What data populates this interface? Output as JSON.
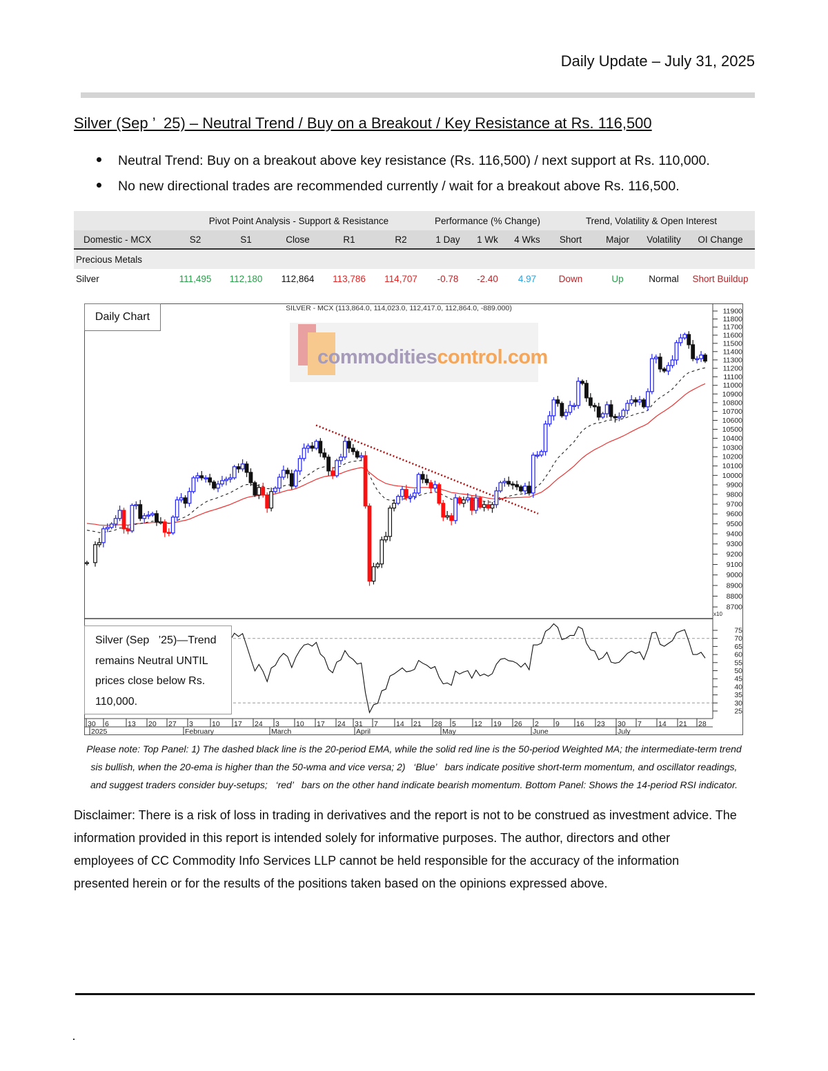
{
  "header": {
    "title": "Daily Update – July 31, 2025"
  },
  "report": {
    "title": "Silver (Sep ’  25) – Neutral Trend / Buy on a Breakout / Key Resistance at Rs. 116,500",
    "bullets": [
      {
        "bold": "Neutral Trend:",
        "text": " Buy on a breakout above key resistance (Rs. 116,500) / next support at Rs. 110,000."
      },
      {
        "bold": "",
        "text": "No new directional trades are recommended currently / wait for a breakout above Rs. 116,500."
      }
    ]
  },
  "table": {
    "groups": [
      "Pivot Point Analysis - Support & Resistance",
      "Performance (% Change)",
      "Trend, Volatility & Open Interest"
    ],
    "columns": [
      "Domestic - MCX",
      "S2",
      "S1",
      "Close",
      "R1",
      "R2",
      "1 Day",
      "1 Wk",
      "4 Wks",
      "Short",
      "Major",
      "Volatility",
      "OI Change"
    ],
    "section": "Precious Metals",
    "row": [
      "Silver",
      "111,495",
      "112,180",
      "112,864",
      "113,786",
      "114,707",
      "-0.78",
      "-2.40",
      "4.97",
      "Down",
      "Up",
      "Normal",
      "Short Buildup"
    ],
    "colors": {
      "support": "#2a9d4a",
      "resistance": "#e02424",
      "negative": "#b3262a",
      "positive_perf": "#2aa3dc"
    }
  },
  "chart": {
    "label": "Daily Chart",
    "header": "SILVER - MCX (113,864.0, 114,023.0, 112,417.0, 112,864.0, -889.000)",
    "watermark": {
      "part1": "commodities",
      "part2": "control.com"
    },
    "rsi_note": "Silver (Sep   ’25)—Trend\nremains Neutral UNTIL\nprices close below Rs.\n110,000.",
    "scale_marker": "x10"
  },
  "chart_data": {
    "type": "candlestick",
    "title": "SILVER - MCX (113,864.0, 114,023.0, 112,417.0, 112,864.0, -889.000)",
    "y_scale": "log",
    "ylim": [
      8700,
      11900
    ],
    "y_tick_step": 100,
    "grid": false,
    "closes": [
      9118,
      9293,
      9313,
      9450,
      9464,
      9498,
      9554,
      9637,
      9450,
      9429,
      9688,
      9695,
      9554,
      9582,
      9589,
      9603,
      9519,
      9519,
      9415,
      9409,
      9568,
      9744,
      9765,
      9709,
      9830,
      9974,
      9996,
      9974,
      9974,
      9930,
      9866,
      9909,
      9945,
      9959,
      9974,
      10092,
      10069,
      10121,
      10032,
      9923,
      9794,
      9873,
      9794,
      9660,
      9830,
      9866,
      9981,
      10054,
      10018,
      9887,
      10047,
      10180,
      10292,
      10315,
      10292,
      10367,
      10240,
      10195,
      10047,
      9996,
      10158,
      10195,
      10367,
      10292,
      10255,
      10195,
      10210,
      9681,
      8941,
      9078,
      9105,
      9340,
      9374,
      9660,
      9709,
      9780,
      9852,
      9765,
      9780,
      9815,
      10010,
      9959,
      9923,
      9866,
      9902,
      9709,
      9568,
      9582,
      9533,
      9765,
      9709,
      9744,
      9765,
      9637,
      9765,
      9667,
      9695,
      9660,
      9695,
      9837,
      9923,
      9937,
      9909,
      9902,
      9880,
      9837,
      9887,
      9815,
      10217,
      10217,
      10255,
      10559,
      10651,
      10832,
      10792,
      10651,
      10690,
      10768,
      10768,
      11047,
      11023,
      10855,
      10768,
      10753,
      10636,
      10674,
      10776,
      10643,
      10628,
      10643,
      10713,
      10792,
      10832,
      10808,
      10832,
      10753,
      10927,
      11315,
      11333,
      11192,
      11168,
      11233,
      11299,
      11508,
      11566,
      11608,
      11483,
      11315,
      11315,
      11358,
      11286
    ],
    "overlays": [
      {
        "kind": "EMA",
        "period": 20,
        "style": "dashed",
        "color": "#222222"
      },
      {
        "kind": "WMA",
        "period": 50,
        "style": "solid",
        "color": "#ee3333"
      }
    ],
    "trendline": {
      "from_price": 10545,
      "to_price": 9603,
      "color": "#b01010",
      "style": "dotted"
    },
    "bar_colors": {
      "positive": "#2020ee",
      "negative": "#ff1010",
      "neutral": "#111111"
    },
    "rsi": {
      "period": 14,
      "ylim": [
        25,
        75
      ],
      "y_tick_step": 5,
      "bands": [
        70,
        30
      ]
    },
    "x_tick_labels": [
      "30",
      "6",
      "13",
      "20",
      "27",
      "3",
      "10",
      "17",
      "24",
      "3",
      "10",
      "17",
      "24",
      "31",
      "7",
      "14",
      "21",
      "28",
      "5",
      "12",
      "19",
      "26",
      "2",
      "9",
      "16",
      "23",
      "30",
      "7",
      "14",
      "21",
      "28"
    ],
    "x_period_labels": [
      "2025",
      "February",
      "March",
      "April",
      "May",
      "June",
      "July"
    ]
  },
  "caption": [
    "Please note: Top Panel: 1) The dashed black line is the 20-period EMA, while the solid red line is the 50-period Weighted MA; the intermediate-term trend",
    "sis bullish, when the 20-ema is higher than the 50-wma and vice versa; 2)   ‘Blue’   bars indicate positive short-term momentum, and oscillator readings,",
    "and suggest traders consider buy-setups;   ‘red’   bars on the other hand indicate bearish momentum. Bottom Panel: Shows the 14-period RSI indicator."
  ],
  "disclaimer": [
    "Disclaimer: There is a risk of loss in trading in derivatives and the report is not to be construed as investment advice. The",
    "information provided in this report is intended solely for informative purposes. The author, directors and other",
    "employees of CC Commodity Info Services LLP cannot be held responsible for the accuracy of the information",
    "presented herein or for the results of the positions taken based on the opinions expressed above."
  ]
}
